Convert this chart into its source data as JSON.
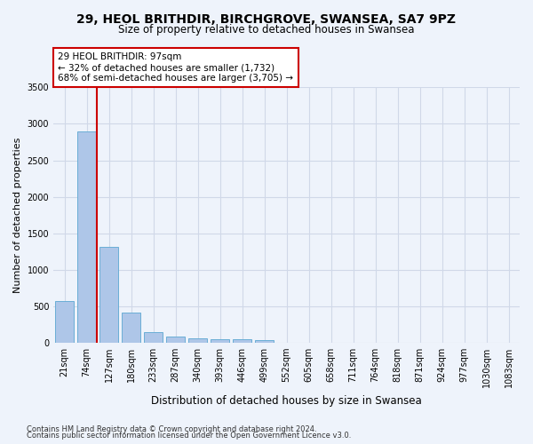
{
  "title_line1": "29, HEOL BRITHDIR, BIRCHGROVE, SWANSEA, SA7 9PZ",
  "title_line2": "Size of property relative to detached houses in Swansea",
  "xlabel": "Distribution of detached houses by size in Swansea",
  "ylabel": "Number of detached properties",
  "bar_color": "#aec6e8",
  "bar_edge_color": "#6aaed6",
  "categories": [
    "21sqm",
    "74sqm",
    "127sqm",
    "180sqm",
    "233sqm",
    "287sqm",
    "340sqm",
    "393sqm",
    "446sqm",
    "499sqm",
    "552sqm",
    "605sqm",
    "658sqm",
    "711sqm",
    "764sqm",
    "818sqm",
    "871sqm",
    "924sqm",
    "977sqm",
    "1030sqm",
    "1083sqm"
  ],
  "values": [
    570,
    2900,
    1320,
    410,
    150,
    90,
    60,
    55,
    45,
    40,
    0,
    0,
    0,
    0,
    0,
    0,
    0,
    0,
    0,
    0,
    0
  ],
  "ylim": [
    0,
    3500
  ],
  "yticks": [
    0,
    500,
    1000,
    1500,
    2000,
    2500,
    3000,
    3500
  ],
  "annotation_title": "29 HEOL BRITHDIR: 97sqm",
  "annotation_line1": "← 32% of detached houses are smaller (1,732)",
  "annotation_line2": "68% of semi-detached houses are larger (3,705) →",
  "footer_line1": "Contains HM Land Registry data © Crown copyright and database right 2024.",
  "footer_line2": "Contains public sector information licensed under the Open Government Licence v3.0.",
  "background_color": "#eef3fb",
  "grid_color": "#d0d8e8",
  "annotation_box_color": "#ffffff",
  "annotation_box_edge_color": "#cc0000",
  "vline_color": "#cc0000",
  "vline_x": 1.45
}
